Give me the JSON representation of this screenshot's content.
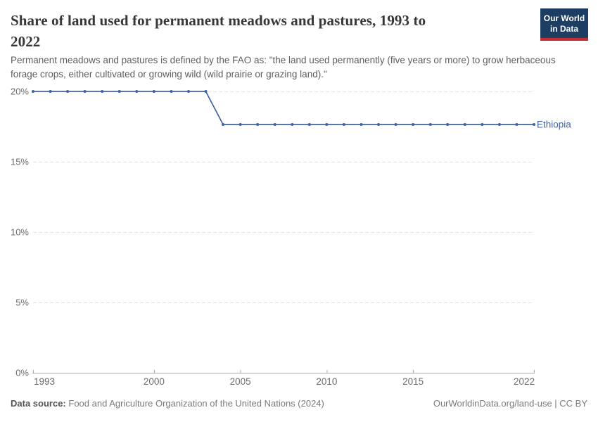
{
  "header": {
    "title": "Share of land used for permanent meadows and pastures, 1993 to 2022",
    "subtitle": "Permanent meadows and pastures is defined by the FAO as: \"the land used permanently (five years or more) to grow herbaceous forage crops, either cultivated or growing wild (wild prairie or grazing land).\""
  },
  "logo": {
    "line1": "Our World",
    "line2": "in Data"
  },
  "colors": {
    "line": "#4063a4",
    "entity_label": "#4063a4",
    "grid": "#e3e3e3",
    "axis": "#a8a8a8",
    "tick_label": "#6b6b6b",
    "logo_bg": "#1d3d63",
    "logo_red": "#c42f35"
  },
  "chart_data": {
    "type": "line",
    "title": "Share of land used for permanent meadows and pastures, 1993 to 2022",
    "xlabel": "",
    "ylabel": "",
    "xlim": [
      1993,
      2022
    ],
    "ylim": [
      0,
      20
    ],
    "grid": "horizontal-dashed",
    "legend_position": "end-of-line",
    "xticks": [
      1993,
      2000,
      2005,
      2010,
      2015,
      2022
    ],
    "yticks": [
      0,
      5,
      10,
      15,
      20
    ],
    "ytick_labels": [
      "0%",
      "5%",
      "10%",
      "15%",
      "20%"
    ],
    "ytick_suffix": "%",
    "series": [
      {
        "name": "Ethiopia",
        "x": [
          1993,
          1994,
          1995,
          1996,
          1997,
          1998,
          1999,
          2000,
          2001,
          2002,
          2003,
          2004,
          2005,
          2006,
          2007,
          2008,
          2009,
          2010,
          2011,
          2012,
          2013,
          2014,
          2015,
          2016,
          2017,
          2018,
          2019,
          2020,
          2021,
          2022
        ],
        "values": [
          20,
          20,
          20,
          20,
          20,
          20,
          20,
          20,
          20,
          20,
          20,
          17.65,
          17.65,
          17.65,
          17.65,
          17.65,
          17.65,
          17.65,
          17.65,
          17.65,
          17.65,
          17.65,
          17.65,
          17.65,
          17.65,
          17.65,
          17.65,
          17.65,
          17.65,
          17.65
        ]
      }
    ]
  },
  "footer": {
    "source_label": "Data source:",
    "source_text": "Food and Agriculture Organization of the United Nations (2024)",
    "link": "OurWorldinData.org/land-use | CC BY"
  }
}
